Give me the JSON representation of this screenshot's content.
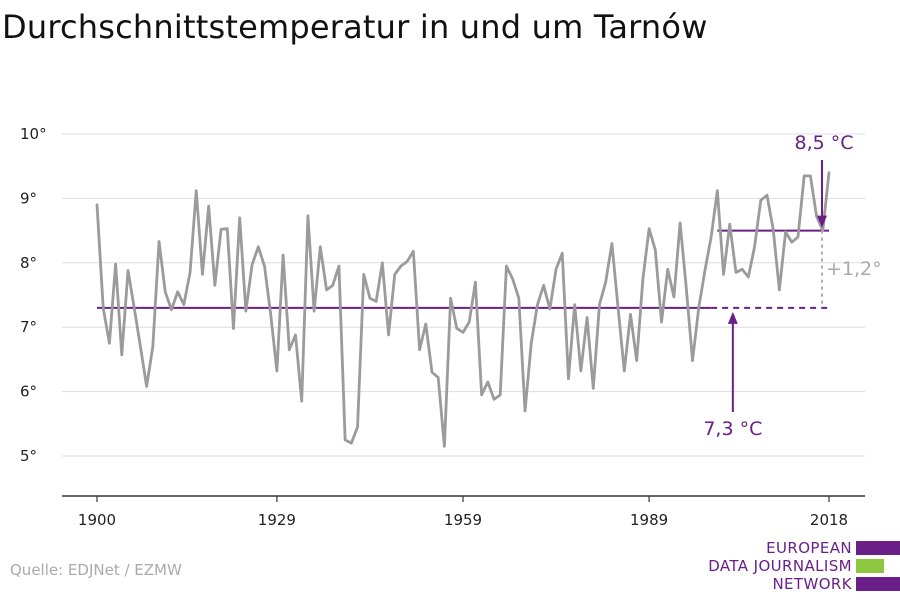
{
  "title": "Durchschnittstemperatur in und um Tarnów",
  "source": "Quelle: EDJNet / EZMW",
  "logo": {
    "lines": [
      "EUROPEAN",
      "DATA JOURNALISM",
      "NETWORK"
    ],
    "colors": {
      "purple": "#6a1f88",
      "green": "#8dc63f"
    }
  },
  "colors": {
    "series": "#9b9b9b",
    "reference": "#6a1f88",
    "grid": "#dddddd",
    "axis": "#333333",
    "diff": "#aaaaaa"
  },
  "chart_data": {
    "type": "line",
    "title": "Durchschnittstemperatur in und um Tarnów",
    "xlabel": "",
    "ylabel": "",
    "xlim": [
      1900,
      2018
    ],
    "ylim": [
      5,
      10
    ],
    "x_ticks": [
      1900,
      1929,
      1959,
      1989,
      2018
    ],
    "y_ticks": [
      {
        "value": 10,
        "label": "10°"
      },
      {
        "value": 9,
        "label": "9°"
      },
      {
        "value": 8,
        "label": "8°"
      },
      {
        "value": 7,
        "label": "7°"
      },
      {
        "value": 6,
        "label": "6°"
      },
      {
        "value": 5,
        "label": "5°"
      }
    ],
    "grid": true,
    "series": [
      {
        "x": [
          1900,
          1901,
          1902,
          1903,
          1904,
          1905,
          1906,
          1907,
          1908,
          1909,
          1910,
          1911,
          1912,
          1913,
          1914,
          1915,
          1916,
          1917,
          1918,
          1919,
          1920,
          1921,
          1922,
          1923,
          1924,
          1925,
          1926,
          1927,
          1928,
          1929,
          1930,
          1931,
          1932,
          1933,
          1934,
          1935,
          1936,
          1937,
          1938,
          1939,
          1940,
          1941,
          1942,
          1943,
          1944,
          1945,
          1946,
          1947,
          1948,
          1949,
          1950,
          1951,
          1952,
          1953,
          1954,
          1955,
          1956,
          1957,
          1958,
          1959,
          1960,
          1961,
          1962,
          1963,
          1964,
          1965,
          1966,
          1967,
          1968,
          1969,
          1970,
          1971,
          1972,
          1973,
          1974,
          1975,
          1976,
          1977,
          1978,
          1979,
          1980,
          1981,
          1982,
          1983,
          1984,
          1985,
          1986,
          1987,
          1988,
          1989,
          1990,
          1991,
          1992,
          1993,
          1994,
          1995,
          1996,
          1997,
          1998,
          1999,
          2000,
          2001,
          2002,
          2003,
          2004,
          2005,
          2006,
          2007,
          2008,
          2009,
          2010,
          2011,
          2012,
          2013,
          2014,
          2015,
          2016,
          2017,
          2018
        ],
        "values": [
          8.9,
          7.3,
          6.75,
          7.98,
          6.57,
          7.88,
          7.3,
          6.7,
          6.08,
          6.7,
          8.33,
          7.55,
          7.27,
          7.55,
          7.35,
          7.85,
          9.12,
          7.82,
          8.88,
          7.65,
          8.52,
          8.53,
          6.98,
          8.7,
          7.25,
          7.97,
          8.25,
          7.95,
          7.2,
          6.32,
          8.12,
          6.65,
          6.88,
          5.85,
          8.73,
          7.25,
          8.25,
          7.58,
          7.65,
          7.95,
          5.25,
          5.2,
          5.45,
          7.82,
          7.45,
          7.4,
          8.0,
          6.88,
          7.82,
          7.95,
          8.02,
          8.18,
          6.65,
          7.05,
          6.3,
          6.22,
          5.15,
          7.45,
          6.98,
          6.92,
          7.08,
          7.7,
          5.95,
          6.15,
          5.88,
          5.95,
          7.95,
          7.75,
          7.45,
          5.7,
          6.75,
          7.35,
          7.65,
          7.28,
          7.9,
          8.15,
          6.2,
          7.35,
          6.32,
          7.15,
          6.05,
          7.35,
          7.7,
          8.3,
          7.3,
          6.32,
          7.2,
          6.48,
          7.75,
          8.53,
          8.2,
          7.08,
          7.9,
          7.47,
          8.62,
          7.6,
          6.48,
          7.3,
          7.88,
          8.4,
          9.12,
          7.82,
          8.6,
          7.85,
          7.9,
          7.78,
          8.25,
          8.97,
          9.05,
          8.52,
          7.58,
          8.48,
          8.32,
          8.4,
          9.35,
          9.35,
          8.72,
          8.5,
          9.4
        ]
      }
    ],
    "reference_lines": [
      {
        "label": "7,3 °C",
        "value": 7.3,
        "from": 1900,
        "to": 1999,
        "style": "solid",
        "dashed_to": 2018
      },
      {
        "label": "8,5 °C",
        "value": 8.5,
        "from": 2000,
        "to": 2018,
        "style": "solid"
      }
    ],
    "difference_label": "+1,2°"
  }
}
